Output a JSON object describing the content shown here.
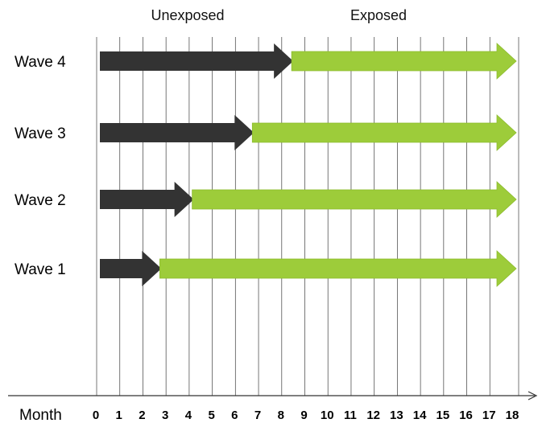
{
  "header": {
    "unexposed_label": "Unexposed",
    "exposed_label": "Exposed"
  },
  "axis": {
    "title": "Month",
    "ticks": [
      "0",
      "1",
      "2",
      "3",
      "4",
      "5",
      "6",
      "7",
      "8",
      "9",
      "10",
      "11",
      "12",
      "13",
      "14",
      "15",
      "16",
      "17",
      "18"
    ],
    "min": 0,
    "max": 18
  },
  "colors": {
    "unexposed": "#333333",
    "exposed": "#9dcc3a",
    "grid": "#555555"
  },
  "waves": [
    {
      "label": "Wave 4",
      "unexposed_start": 0,
      "switch_month": 8.5,
      "end": 18
    },
    {
      "label": "Wave 3",
      "unexposed_start": 0,
      "switch_month": 6.8,
      "end": 18
    },
    {
      "label": "Wave 2",
      "unexposed_start": 0,
      "switch_month": 4.2,
      "end": 18
    },
    {
      "label": "Wave 1",
      "unexposed_start": 0,
      "switch_month": 2.8,
      "end": 18
    }
  ]
}
